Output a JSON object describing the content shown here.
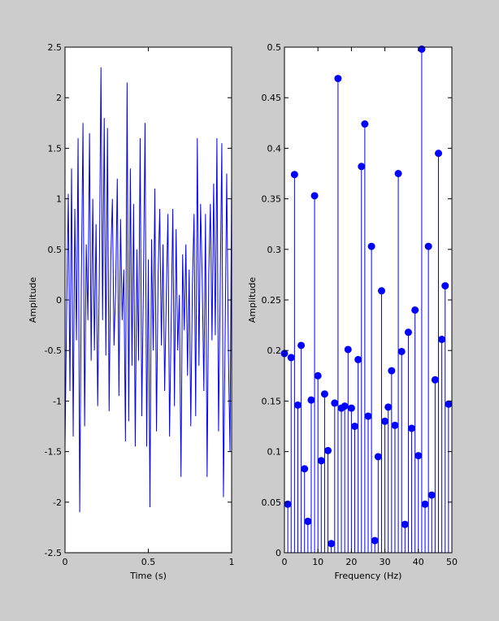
{
  "colors": {
    "background": "#cccccc",
    "axes_background": "#ffffff",
    "line": "#0000ff",
    "axis": "#000000"
  },
  "chart_data": [
    {
      "type": "line",
      "title": "",
      "xlabel": "Time (s)",
      "ylabel": "Amplitude",
      "xlim": [
        0,
        1
      ],
      "ylim": [
        -2.5,
        2.5
      ],
      "xticks": [
        "0",
        "0.5",
        "1"
      ],
      "yticks": [
        "-2.5",
        "-2",
        "-1.5",
        "-1",
        "-0.5",
        "0",
        "0.5",
        "1",
        "1.5",
        "2",
        "2.5"
      ],
      "series": [
        {
          "values": [
            -1.45,
            -0.1,
            1.05,
            -0.9,
            1.3,
            -1.35,
            0.9,
            -0.4,
            1.6,
            -2.1,
            0.2,
            1.75,
            -1.25,
            0.55,
            -0.2,
            1.65,
            -0.6,
            1.0,
            -0.5,
            0.75,
            -1.05,
            0.25,
            2.3,
            -0.2,
            1.8,
            -0.55,
            1.7,
            -1.1,
            0.4,
            1.0,
            -0.45,
            0.1,
            1.2,
            -0.95,
            0.8,
            -0.2,
            0.3,
            -1.4,
            2.15,
            -1.2,
            1.3,
            -0.65,
            0.95,
            -1.45,
            0.5,
            -0.6,
            1.6,
            -1.15,
            0.15,
            1.75,
            -1.45,
            0.4,
            -2.05,
            0.6,
            -0.5,
            1.1,
            -1.3,
            0.25,
            0.9,
            -0.45,
            0.55,
            -0.9,
            0.05,
            0.85,
            -1.35,
            -0.2,
            0.9,
            -1.05,
            0.7,
            -0.5,
            0.05,
            -1.75,
            0.45,
            -0.3,
            0.55,
            -0.75,
            0.3,
            -1.25,
            0.15,
            0.85,
            -1.15,
            1.6,
            -0.65,
            0.95,
            0.2,
            -0.9,
            0.85,
            -1.75,
            0.25,
            0.95,
            -0.4,
            1.15,
            -0.35,
            1.6,
            -1.3,
            0.1,
            1.55,
            -1.95,
            -0.4,
            1.25,
            -0.5,
            -1.5,
            1.2
          ]
        }
      ]
    },
    {
      "type": "stem",
      "title": "",
      "xlabel": "Frequency (Hz)",
      "ylabel": "Amplitude",
      "xlim": [
        0,
        50
      ],
      "ylim": [
        0,
        0.5
      ],
      "xticks": [
        "0",
        "10",
        "20",
        "30",
        "40",
        "50"
      ],
      "yticks": [
        "0",
        "0.05",
        "0.1",
        "0.15",
        "0.2",
        "0.25",
        "0.3",
        "0.35",
        "0.4",
        "0.45",
        "0.5"
      ],
      "x": [
        0,
        1,
        2,
        3,
        4,
        5,
        6,
        7,
        8,
        9,
        10,
        11,
        12,
        13,
        14,
        15,
        16,
        17,
        18,
        19,
        20,
        21,
        22,
        23,
        24,
        25,
        26,
        27,
        28,
        29,
        30,
        31,
        32,
        33,
        34,
        35,
        36,
        37,
        38,
        39,
        40,
        41,
        42,
        43,
        44,
        45,
        46,
        47,
        48,
        49
      ],
      "series": [
        {
          "values": [
            0.197,
            0.048,
            0.193,
            0.374,
            0.146,
            0.205,
            0.083,
            0.031,
            0.151,
            0.353,
            0.175,
            0.091,
            0.157,
            0.101,
            0.009,
            0.148,
            0.469,
            0.143,
            0.145,
            0.201,
            0.143,
            0.125,
            0.191,
            0.382,
            0.424,
            0.135,
            0.303,
            0.012,
            0.095,
            0.259,
            0.13,
            0.144,
            0.18,
            0.126,
            0.375,
            0.199,
            0.028,
            0.218,
            0.123,
            0.24,
            0.096,
            0.498,
            0.048,
            0.303,
            0.057,
            0.171,
            0.395,
            0.211,
            0.264,
            0.147
          ]
        }
      ]
    }
  ]
}
